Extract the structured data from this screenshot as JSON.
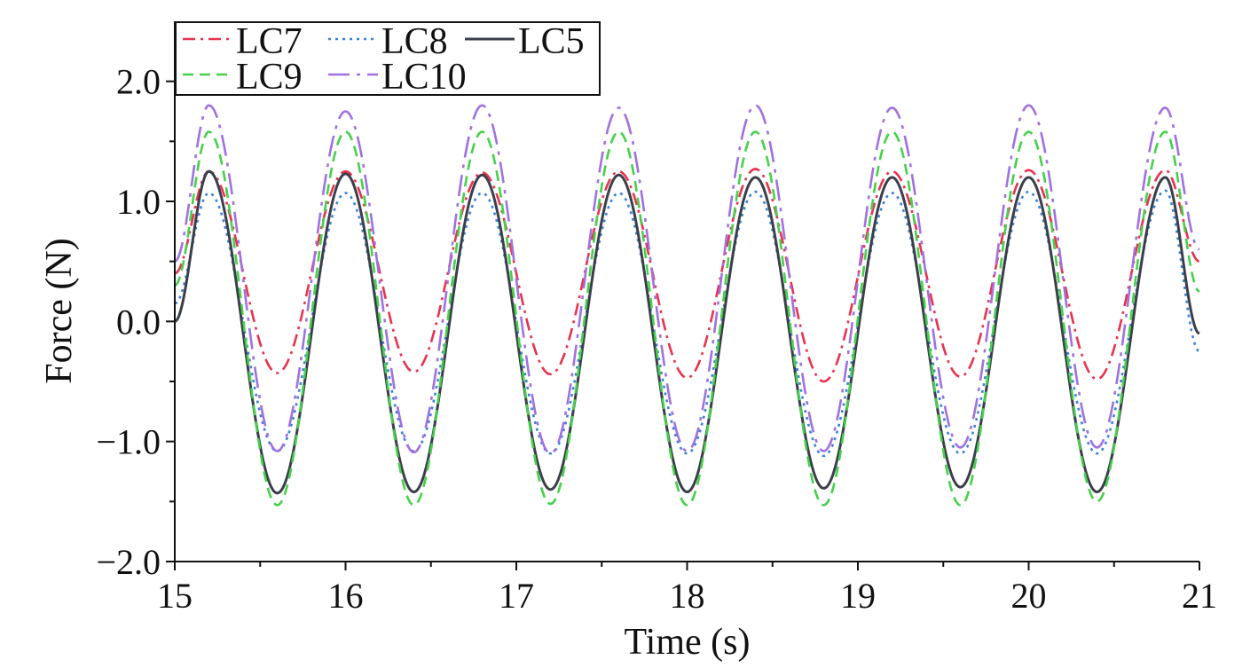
{
  "chart_data": {
    "type": "line",
    "title": "",
    "xlabel": "Time (s)",
    "ylabel": "Force (N)",
    "xlim": [
      15,
      21
    ],
    "ylim": [
      -2.0,
      2.5
    ],
    "x_ticks": [
      15,
      16,
      17,
      18,
      19,
      20,
      21
    ],
    "x_tick_labels": [
      "15",
      "16",
      "17",
      "18",
      "19",
      "20",
      "21"
    ],
    "y_ticks": [
      -2.0,
      -1.0,
      0.0,
      1.0,
      2.0
    ],
    "y_tick_labels": [
      "−2.0",
      "−1.0",
      "0.0",
      "1.0",
      "2.0"
    ],
    "grid": false,
    "legend_position": "top-left",
    "period_s": 0.8,
    "series": [
      {
        "name": "LC7",
        "color": "#e8324f",
        "dash": "dash-dot",
        "x": [
          15.0,
          15.2,
          15.6,
          16.0,
          16.4,
          16.8,
          17.2,
          17.6,
          18.0,
          18.4,
          18.8,
          19.2,
          19.6,
          20.0,
          20.4,
          20.8,
          21.0
        ],
        "y": [
          0.4,
          1.25,
          -0.43,
          1.25,
          -0.42,
          1.24,
          -0.44,
          1.25,
          -0.47,
          1.27,
          -0.5,
          1.25,
          -0.46,
          1.26,
          -0.48,
          1.26,
          0.5
        ]
      },
      {
        "name": "LC8",
        "color": "#3b82d4",
        "dash": "dotted",
        "x": [
          15.0,
          15.2,
          15.6,
          16.0,
          16.4,
          16.8,
          17.2,
          17.6,
          18.0,
          18.4,
          18.8,
          19.2,
          19.6,
          20.0,
          20.4,
          20.8,
          21.0
        ],
        "y": [
          0.15,
          1.07,
          -1.08,
          1.07,
          -1.08,
          1.07,
          -1.1,
          1.07,
          -1.1,
          1.08,
          -1.12,
          1.07,
          -1.1,
          1.08,
          -1.1,
          1.09,
          -0.25
        ]
      },
      {
        "name": "LC5",
        "color": "#3b3f4a",
        "dash": "solid",
        "x": [
          15.0,
          15.2,
          15.6,
          16.0,
          16.4,
          16.8,
          17.2,
          17.6,
          18.0,
          18.4,
          18.8,
          19.2,
          19.6,
          20.0,
          20.4,
          20.8,
          21.0
        ],
        "y": [
          0.0,
          1.25,
          -1.43,
          1.23,
          -1.42,
          1.22,
          -1.4,
          1.22,
          -1.42,
          1.2,
          -1.39,
          1.2,
          -1.38,
          1.2,
          -1.42,
          1.2,
          -0.1
        ]
      },
      {
        "name": "LC9",
        "color": "#45d14a",
        "dash": "dashed",
        "x": [
          15.0,
          15.2,
          15.6,
          16.0,
          16.4,
          16.8,
          17.2,
          17.6,
          18.0,
          18.4,
          18.8,
          19.2,
          19.6,
          20.0,
          20.4,
          20.8,
          21.0
        ],
        "y": [
          0.3,
          1.58,
          -1.53,
          1.58,
          -1.53,
          1.58,
          -1.52,
          1.58,
          -1.53,
          1.58,
          -1.53,
          1.58,
          -1.53,
          1.58,
          -1.5,
          1.58,
          0.25
        ]
      },
      {
        "name": "LC10",
        "color": "#a071e0",
        "dash": "long-dash-dot",
        "x": [
          15.0,
          15.2,
          15.6,
          16.0,
          16.4,
          16.8,
          17.2,
          17.6,
          18.0,
          18.4,
          18.8,
          19.2,
          19.6,
          20.0,
          20.4,
          20.8,
          21.0
        ],
        "y": [
          0.5,
          1.8,
          -1.08,
          1.75,
          -1.09,
          1.8,
          -1.1,
          1.78,
          -1.08,
          1.8,
          -1.08,
          1.78,
          -1.05,
          1.8,
          -1.05,
          1.78,
          0.6
        ]
      }
    ]
  }
}
